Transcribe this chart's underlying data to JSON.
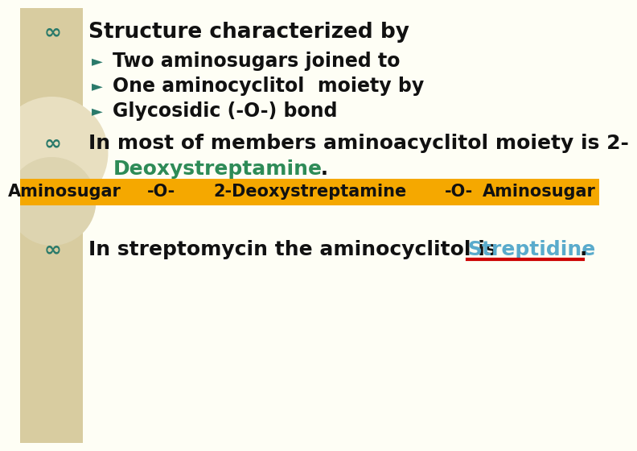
{
  "bg_color": "#fefef5",
  "left_panel_color": "#d8cca0",
  "line1": "Structure characterized by",
  "sub1": "Two aminosugars joined to",
  "sub2": "One aminocyclitol  moiety by",
  "sub3": "Glycosidic (-O-) bond",
  "line2_part1": "In most of members aminoacyclitol moiety is 2-",
  "line2_part2": "Deoxystreptamine",
  "line2_part3": " .",
  "bar_color": "#f5a800",
  "bar_labels": [
    "Aminosugar",
    "-O-",
    "2-Deoxystreptamine",
    "-O-",
    "Aminosugar"
  ],
  "bar_label_color": "#111111",
  "line3_part1": "In streptomycin the aminocyclitol is ",
  "line3_part2": "Streptidine",
  "line3_part3": ".",
  "green_color": "#2e8b57",
  "cyan_color": "#5aabcc",
  "red_underline_color": "#cc0000",
  "title_fontsize": 19,
  "sub_fontsize": 17,
  "body_fontsize": 18,
  "bar_fontsize": 15,
  "bullet_color": "#2a7a6a",
  "arrow_color": "#2a7a6a",
  "text_color": "#111111"
}
